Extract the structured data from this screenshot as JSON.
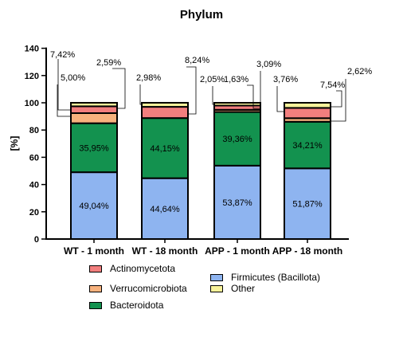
{
  "chart_data": {
    "type": "bar",
    "stacked": true,
    "title": "Phylum",
    "ylabel": "[%]",
    "xlabel": "",
    "ylim": [
      0,
      140
    ],
    "yticks": [
      0,
      20,
      40,
      60,
      80,
      100,
      120,
      140
    ],
    "categories": [
      "WT - 1 month",
      "WT - 18 month",
      "APP - 1 month",
      "APP - 18 month"
    ],
    "series": [
      {
        "name": "Firmicutes (Bacillota)",
        "color": "#8eb4f0",
        "values": [
          49.04,
          44.64,
          53.87,
          51.87
        ],
        "labels": [
          "49,04%",
          "44,64%",
          "53,87%",
          "51,87%"
        ]
      },
      {
        "name": "Bacteroidota",
        "color": "#13924f",
        "values": [
          35.95,
          44.15,
          39.36,
          34.21
        ],
        "labels": [
          "35,95%",
          "44,15%",
          "39,36%",
          "34,21%"
        ]
      },
      {
        "name": "Verrucomicrobiota",
        "color": "#f7b27e",
        "values": [
          7.42,
          0.0,
          1.63,
          2.62
        ],
        "labels": [
          "7,42%",
          "",
          "1,63%",
          "2,62%"
        ]
      },
      {
        "name": "Actinomycetota",
        "color": "#f27f7e",
        "values": [
          5.0,
          8.24,
          3.09,
          7.54
        ],
        "labels": [
          "5,00%",
          "8,24%",
          "3,09%",
          "7,54%"
        ]
      },
      {
        "name": "Other",
        "color": "#f7f29a",
        "values": [
          2.59,
          2.98,
          2.05,
          3.76
        ],
        "labels": [
          "2,59%",
          "2,98%",
          "2,05%",
          "3,76%"
        ]
      }
    ],
    "legend": {
      "placement": "bottom",
      "order": [
        "Actinomycetota",
        "Firmicutes (Bacillota)",
        "Verrucomicrobiota",
        "Other",
        "Bacteroidota"
      ]
    },
    "grid": false
  }
}
